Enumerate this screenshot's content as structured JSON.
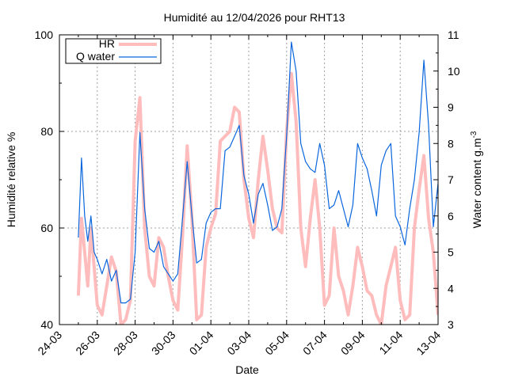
{
  "chart_data": {
    "type": "line",
    "title": "Humidité au 12/04/2026 pour RHT13",
    "xlabel": "Date",
    "ylabel": "Humidité relative %",
    "y2label": "Water content g.m",
    "y2label_superscript": "-3",
    "x_tick_labels": [
      "24-03",
      "26-03",
      "28-03",
      "30-03",
      "01-04",
      "03-04",
      "05-04",
      "07-04",
      "09-04",
      "11-04",
      "13-04"
    ],
    "xlim": [
      "2026-03-24",
      "2026-04-13"
    ],
    "ylim": [
      40,
      100
    ],
    "y_ticks": [
      40,
      60,
      80,
      100
    ],
    "y2lim": [
      3,
      11
    ],
    "y2_ticks": [
      3,
      4,
      5,
      6,
      7,
      8,
      9,
      10,
      11
    ],
    "grid": true,
    "legend_position": "top-left",
    "series": [
      {
        "name": "HR",
        "axis": "left",
        "color": "#ffbcbc",
        "x": [
          "2026-03-25T00:00",
          "2026-03-25T04:00",
          "2026-03-25T08:00",
          "2026-03-25T12:00",
          "2026-03-25T16:00",
          "2026-03-25T20:00",
          "2026-03-26T00:00",
          "2026-03-26T06:00",
          "2026-03-26T12:00",
          "2026-03-26T18:00",
          "2026-03-27T00:00",
          "2026-03-27T06:00",
          "2026-03-27T12:00",
          "2026-03-27T18:00",
          "2026-03-28T00:00",
          "2026-03-28T06:00",
          "2026-03-28T12:00",
          "2026-03-28T18:00",
          "2026-03-29T00:00",
          "2026-03-29T06:00",
          "2026-03-29T12:00",
          "2026-03-29T18:00",
          "2026-03-30T00:00",
          "2026-03-30T06:00",
          "2026-03-30T12:00",
          "2026-03-30T18:00",
          "2026-03-31T00:00",
          "2026-03-31T06:00",
          "2026-03-31T12:00",
          "2026-03-31T18:00",
          "2026-04-01T00:00",
          "2026-04-01T06:00",
          "2026-04-01T12:00",
          "2026-04-01T18:00",
          "2026-04-02T00:00",
          "2026-04-02T06:00",
          "2026-04-02T12:00",
          "2026-04-02T18:00",
          "2026-04-03T00:00",
          "2026-04-03T06:00",
          "2026-04-03T12:00",
          "2026-04-03T18:00",
          "2026-04-04T00:00",
          "2026-04-04T06:00",
          "2026-04-04T12:00",
          "2026-04-04T18:00",
          "2026-04-05T00:00",
          "2026-04-05T06:00",
          "2026-04-05T12:00",
          "2026-04-05T18:00",
          "2026-04-06T00:00",
          "2026-04-06T06:00",
          "2026-04-06T12:00",
          "2026-04-06T18:00",
          "2026-04-07T00:00",
          "2026-04-07T06:00",
          "2026-04-07T12:00",
          "2026-04-07T18:00",
          "2026-04-08T00:00",
          "2026-04-08T06:00",
          "2026-04-08T12:00",
          "2026-04-08T18:00",
          "2026-04-09T00:00",
          "2026-04-09T06:00",
          "2026-04-09T12:00",
          "2026-04-09T18:00",
          "2026-04-10T00:00",
          "2026-04-10T06:00",
          "2026-04-10T12:00",
          "2026-04-10T18:00",
          "2026-04-11T00:00",
          "2026-04-11T06:00",
          "2026-04-11T12:00",
          "2026-04-11T18:00",
          "2026-04-12T00:00",
          "2026-04-12T06:00",
          "2026-04-12T12:00",
          "2026-04-12T18:00",
          "2026-04-13T00:00"
        ],
        "y": [
          46,
          62,
          55,
          48,
          60,
          52,
          44,
          42,
          48,
          54,
          51,
          40,
          41,
          45,
          78,
          87,
          60,
          50,
          48,
          58,
          56,
          50,
          45,
          43,
          58,
          77,
          62,
          41,
          42,
          56,
          60,
          63,
          78,
          79,
          80,
          85,
          84,
          70,
          62,
          58,
          70,
          79,
          72,
          64,
          60,
          59,
          80,
          92,
          82,
          60,
          52,
          62,
          70,
          60,
          44,
          46,
          60,
          50,
          47,
          42,
          48,
          56,
          52,
          47,
          46,
          42,
          40,
          48,
          52,
          56,
          45,
          41,
          42,
          60,
          68,
          75,
          62,
          55,
          42
        ]
      },
      {
        "name": "Q water",
        "axis": "right",
        "color": "#0a66dd",
        "x": [
          "2026-03-25T00:00",
          "2026-03-25T04:00",
          "2026-03-25T08:00",
          "2026-03-25T12:00",
          "2026-03-25T16:00",
          "2026-03-25T20:00",
          "2026-03-26T00:00",
          "2026-03-26T06:00",
          "2026-03-26T12:00",
          "2026-03-26T18:00",
          "2026-03-27T00:00",
          "2026-03-27T06:00",
          "2026-03-27T12:00",
          "2026-03-27T18:00",
          "2026-03-28T00:00",
          "2026-03-28T06:00",
          "2026-03-28T12:00",
          "2026-03-28T18:00",
          "2026-03-29T00:00",
          "2026-03-29T06:00",
          "2026-03-29T12:00",
          "2026-03-29T18:00",
          "2026-03-30T00:00",
          "2026-03-30T06:00",
          "2026-03-30T12:00",
          "2026-03-30T18:00",
          "2026-03-31T00:00",
          "2026-03-31T06:00",
          "2026-03-31T12:00",
          "2026-03-31T18:00",
          "2026-04-01T00:00",
          "2026-04-01T06:00",
          "2026-04-01T12:00",
          "2026-04-01T18:00",
          "2026-04-02T00:00",
          "2026-04-02T06:00",
          "2026-04-02T12:00",
          "2026-04-02T18:00",
          "2026-04-03T00:00",
          "2026-04-03T06:00",
          "2026-04-03T12:00",
          "2026-04-03T18:00",
          "2026-04-04T00:00",
          "2026-04-04T06:00",
          "2026-04-04T12:00",
          "2026-04-04T18:00",
          "2026-04-05T00:00",
          "2026-04-05T06:00",
          "2026-04-05T12:00",
          "2026-04-05T18:00",
          "2026-04-06T00:00",
          "2026-04-06T06:00",
          "2026-04-06T12:00",
          "2026-04-06T18:00",
          "2026-04-07T00:00",
          "2026-04-07T06:00",
          "2026-04-07T12:00",
          "2026-04-07T18:00",
          "2026-04-08T00:00",
          "2026-04-08T06:00",
          "2026-04-08T12:00",
          "2026-04-08T18:00",
          "2026-04-09T00:00",
          "2026-04-09T06:00",
          "2026-04-09T12:00",
          "2026-04-09T18:00",
          "2026-04-10T00:00",
          "2026-04-10T06:00",
          "2026-04-10T12:00",
          "2026-04-10T18:00",
          "2026-04-11T00:00",
          "2026-04-11T06:00",
          "2026-04-11T12:00",
          "2026-04-11T18:00",
          "2026-04-12T00:00",
          "2026-04-12T06:00",
          "2026-04-12T12:00",
          "2026-04-12T18:00",
          "2026-04-13T00:00"
        ],
        "y": [
          5.4,
          7.6,
          6.0,
          5.3,
          6.0,
          5.0,
          4.8,
          4.4,
          4.8,
          4.2,
          4.5,
          3.6,
          3.6,
          3.7,
          5.0,
          8.3,
          6.2,
          5.1,
          5.0,
          5.3,
          4.6,
          4.4,
          4.2,
          4.4,
          5.9,
          7.5,
          6.0,
          4.7,
          4.8,
          5.8,
          6.1,
          6.2,
          6.2,
          7.8,
          7.9,
          8.2,
          8.5,
          7.1,
          6.6,
          5.8,
          6.6,
          6.9,
          6.3,
          5.6,
          5.7,
          6.2,
          8.2,
          10.8,
          10.0,
          8.0,
          7.5,
          7.3,
          7.2,
          8.0,
          7.4,
          6.2,
          6.3,
          6.7,
          6.2,
          5.7,
          6.3,
          8.0,
          7.6,
          7.3,
          6.7,
          6.0,
          7.4,
          7.8,
          8.0,
          6.0,
          5.7,
          5.2,
          6.2,
          7.0,
          8.3,
          10.3,
          8.5,
          5.7,
          6.9
        ]
      }
    ]
  }
}
